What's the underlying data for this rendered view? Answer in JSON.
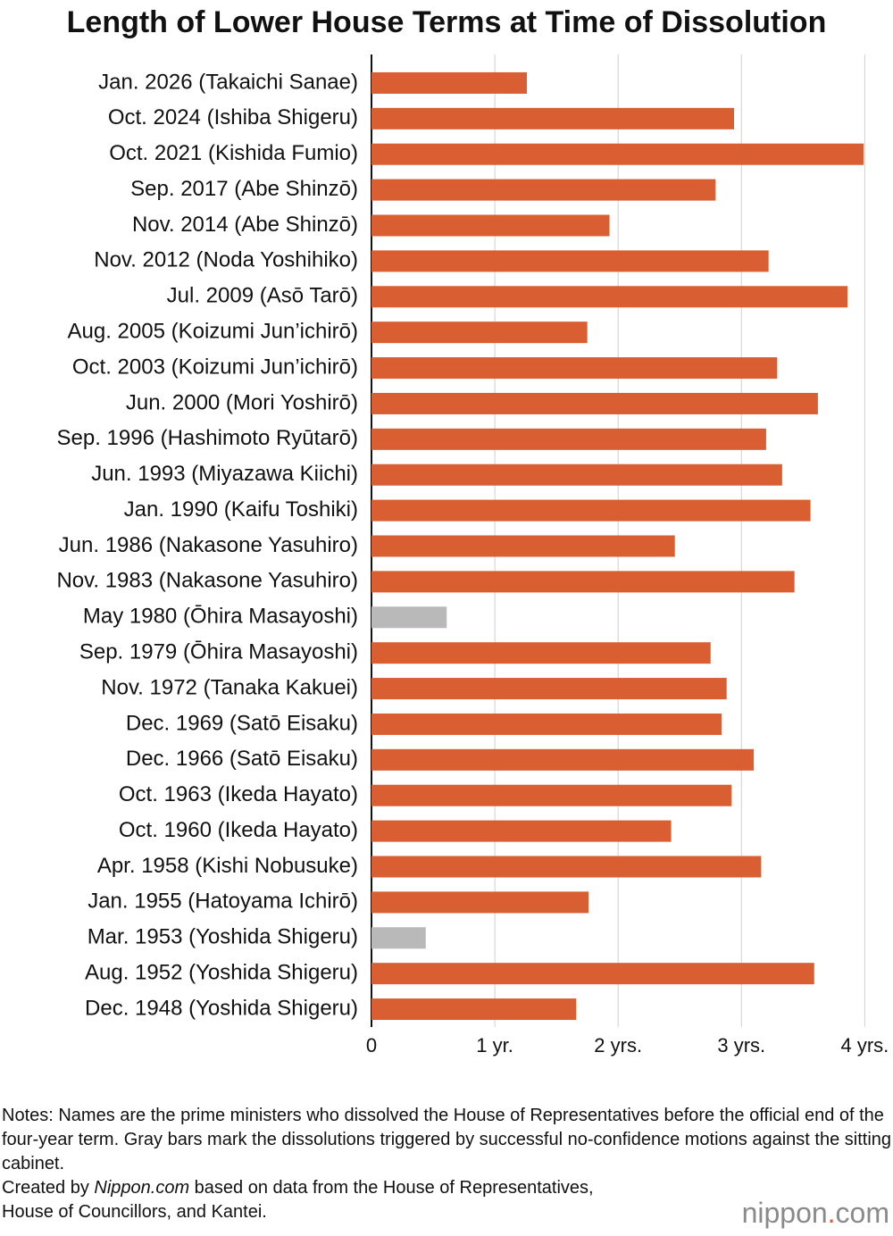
{
  "chart_data": {
    "type": "barh",
    "title": "Length of Lower House Terms at Time of Dissolution",
    "categories": [
      "Jan. 2026 (Takaichi Sanae)",
      "Oct. 2024 (Ishiba Shigeru)",
      "Oct. 2021 (Kishida Fumio)",
      "Sep. 2017 (Abe Shinzō)",
      "Nov. 2014 (Abe Shinzō)",
      "Nov. 2012 (Noda Yoshihiko)",
      "Jul. 2009 (Asō Tarō)",
      "Aug. 2005 (Koizumi Jun’ichirō)",
      "Oct. 2003 (Koizumi Jun’ichirō)",
      "Jun. 2000 (Mori Yoshirō)",
      "Sep. 1996 (Hashimoto Ryūtarō)",
      "Jun. 1993 (Miyazawa Kiichi)",
      "Jan. 1990 (Kaifu Toshiki)",
      "Jun. 1986 (Nakasone Yasuhiro)",
      "Nov. 1983 (Nakasone Yasuhiro)",
      "May 1980 (Ōhira Masayoshi)",
      "Sep. 1979 (Ōhira Masayoshi)",
      "Nov. 1972 (Tanaka Kakuei)",
      "Dec. 1969 (Satō Eisaku)",
      "Dec. 1966 (Satō Eisaku)",
      "Oct. 1963 (Ikeda Hayato)",
      "Oct. 1960 (Ikeda Hayato)",
      "Apr. 1958 (Kishi Nobusuke)",
      "Jan. 1955 (Hatoyama Ichirō)",
      "Mar. 1953 (Yoshida Shigeru)",
      "Aug. 1952 (Yoshida Shigeru)",
      "Dec. 1948 (Yoshida Shigeru)"
    ],
    "values": [
      1.26,
      2.94,
      3.99,
      2.79,
      1.93,
      3.22,
      3.86,
      1.75,
      3.29,
      3.62,
      3.2,
      3.33,
      3.56,
      2.46,
      3.43,
      0.61,
      2.75,
      2.88,
      2.84,
      3.1,
      2.92,
      2.43,
      3.16,
      1.76,
      0.44,
      3.59,
      1.66
    ],
    "colors": [
      "#d95f33",
      "#d95f33",
      "#d95f33",
      "#d95f33",
      "#d95f33",
      "#d95f33",
      "#d95f33",
      "#d95f33",
      "#d95f33",
      "#d95f33",
      "#d95f33",
      "#d95f33",
      "#d95f33",
      "#d95f33",
      "#d95f33",
      "#b9b9b9",
      "#d95f33",
      "#d95f33",
      "#d95f33",
      "#d95f33",
      "#d95f33",
      "#d95f33",
      "#d95f33",
      "#d95f33",
      "#b9b9b9",
      "#d95f33",
      "#d95f33"
    ],
    "xlim": [
      0,
      4.2
    ],
    "xticks": [
      0,
      {
        "value": 1,
        "label": "1 yr."
      },
      {
        "value": 2,
        "label": "2 yrs."
      },
      {
        "value": 3,
        "label": "3 yrs."
      },
      {
        "value": 4,
        "label": "4 yrs."
      }
    ],
    "grid": true
  },
  "footer": {
    "notes": "Notes: Names are the prime ministers who dissolved the House of Representatives before the official end of the four-year term. Gray bars mark the dissolutions triggered by successful no-confidence motions against the sitting cabinet.",
    "credit": [
      "Created by ",
      "Nippon.com",
      " based on data from the House of Representatives, House of Councillors, and Kantei."
    ],
    "logo": [
      "nippon",
      ".",
      "com"
    ]
  }
}
